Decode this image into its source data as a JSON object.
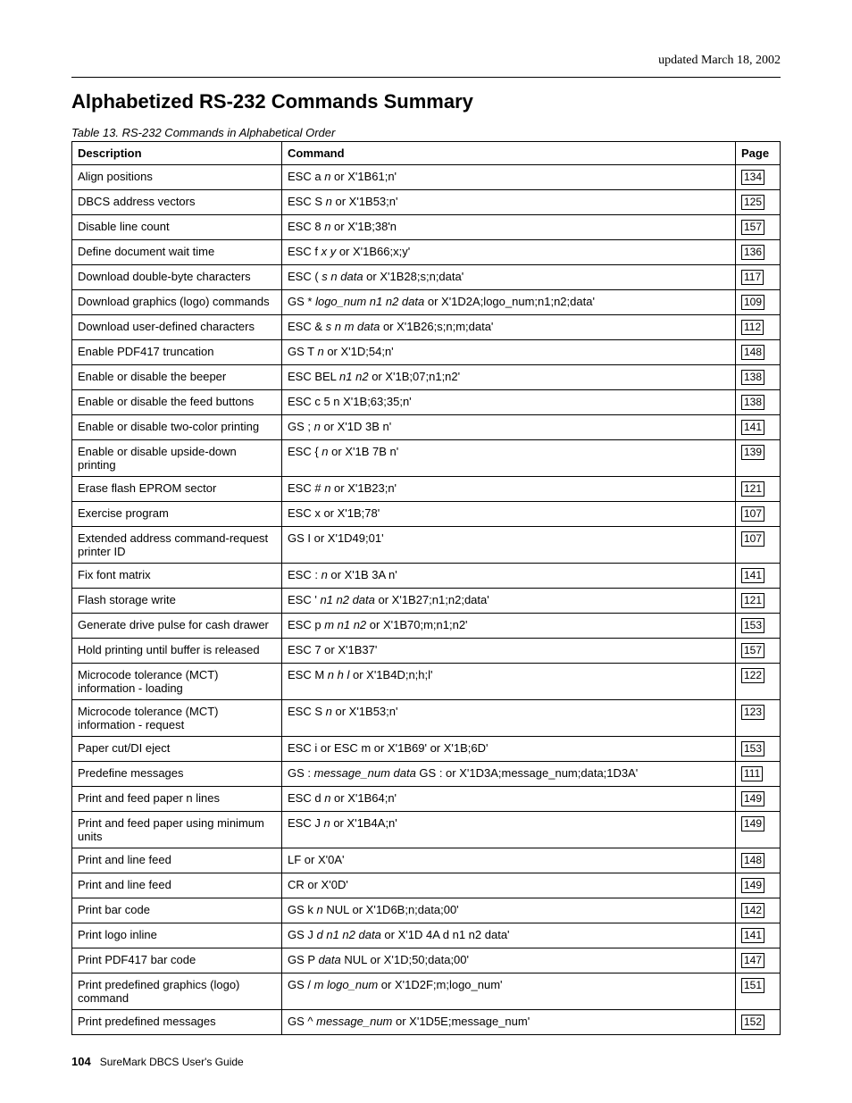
{
  "updated_text": "updated March 18, 2002",
  "heading": "Alphabetized RS-232 Commands Summary",
  "table_caption": "Table 13. RS-232 Commands in Alphabetical Order",
  "columns": {
    "description": "Description",
    "command": "Command",
    "page": "Page"
  },
  "rows": [
    {
      "desc": "Align positions",
      "cmd_pre": "ESC a ",
      "cmd_ital": "n",
      "cmd_post": " or X'1B61;n'",
      "page": "134"
    },
    {
      "desc": "DBCS address vectors",
      "cmd_pre": "ESC S ",
      "cmd_ital": "n",
      "cmd_post": " or X'1B53;n'",
      "page": "125"
    },
    {
      "desc": "Disable line count",
      "cmd_pre": "ESC 8 ",
      "cmd_ital": "n",
      "cmd_post": " or X'1B;38'n",
      "page": "157"
    },
    {
      "desc": "Define document wait time",
      "cmd_pre": "ESC f ",
      "cmd_ital": "x y",
      "cmd_post": " or X'1B66;x;y'",
      "page": "136"
    },
    {
      "desc": "Download double-byte characters",
      "cmd_pre": "ESC ( ",
      "cmd_ital": "s n data",
      "cmd_post": " or X'1B28;s;n;data'",
      "page": "117"
    },
    {
      "desc": "Download graphics (logo) commands",
      "cmd_pre": "GS * ",
      "cmd_ital": "logo_num n1 n2 data",
      "cmd_post": " or X'1D2A;logo_num;n1;n2;data'",
      "page": "109"
    },
    {
      "desc": "Download user-defined characters",
      "cmd_pre": "ESC & ",
      "cmd_ital": "s n m data",
      "cmd_post": " or X'1B26;s;n;m;data'",
      "page": "112"
    },
    {
      "desc": "Enable PDF417 truncation",
      "cmd_pre": "GS T ",
      "cmd_ital": "n",
      "cmd_post": " or X'1D;54;n'",
      "page": "148"
    },
    {
      "desc": "Enable or disable the beeper",
      "cmd_pre": "ESC BEL ",
      "cmd_ital": "n1 n2",
      "cmd_post": " or X'1B;07;n1;n2'",
      "page": "138"
    },
    {
      "desc": "Enable or disable the feed buttons",
      "cmd_pre": "ESC c 5 n X'1B;63;35;n'",
      "cmd_ital": "",
      "cmd_post": "",
      "page": "138"
    },
    {
      "desc": "Enable or disable two-color printing",
      "cmd_pre": "GS ; ",
      "cmd_ital": "n",
      "cmd_post": " or X'1D 3B n'",
      "page": "141"
    },
    {
      "desc": "Enable or disable upside-down printing",
      "cmd_pre": "ESC { ",
      "cmd_ital": "n",
      "cmd_post": " or X'1B 7B n'",
      "page": "139"
    },
    {
      "desc": "Erase flash EPROM sector",
      "cmd_pre": "ESC # ",
      "cmd_ital": "n",
      "cmd_post": " or X'1B23;n'",
      "page": "121"
    },
    {
      "desc": "Exercise program",
      "cmd_pre": "ESC x or X'1B;78'",
      "cmd_ital": "",
      "cmd_post": "",
      "page": "107"
    },
    {
      "desc": "Extended address command-request printer ID",
      "cmd_pre": "GS I or X'1D49;01'",
      "cmd_ital": "",
      "cmd_post": "",
      "page": "107"
    },
    {
      "desc": "Fix font matrix",
      "cmd_pre": "ESC : ",
      "cmd_ital": "n",
      "cmd_post": " or X'1B 3A n'",
      "page": "141"
    },
    {
      "desc": "Flash storage write",
      "cmd_pre": "ESC ' ",
      "cmd_ital": "n1 n2 data",
      "cmd_post": " or X'1B27;n1;n2;data'",
      "page": "121"
    },
    {
      "desc": "Generate drive pulse for cash drawer",
      "cmd_pre": "ESC p ",
      "cmd_ital": "m n1 n2",
      "cmd_post": " or X'1B70;m;n1;n2'",
      "page": "153"
    },
    {
      "desc": "Hold printing until buffer is released",
      "cmd_pre": "ESC 7 or X'1B37'",
      "cmd_ital": "",
      "cmd_post": "",
      "page": "157"
    },
    {
      "desc": "Microcode tolerance (MCT) information - loading",
      "cmd_pre": "ESC M ",
      "cmd_ital": "n h l",
      "cmd_post": " or X'1B4D;n;h;l'",
      "page": "122"
    },
    {
      "desc": "Microcode tolerance (MCT) information - request",
      "cmd_pre": "ESC S ",
      "cmd_ital": "n",
      "cmd_post": " or X'1B53;n'",
      "page": "123"
    },
    {
      "desc": "Paper cut/DI eject",
      "cmd_pre": "ESC i or ESC m or X'1B69' or X'1B;6D'",
      "cmd_ital": "",
      "cmd_post": "",
      "page": "153"
    },
    {
      "desc": "Predefine messages",
      "cmd_pre": "GS : ",
      "cmd_ital": "message_num data",
      "cmd_post": " GS : or X'1D3A;message_num;data;1D3A'",
      "page": "111"
    },
    {
      "desc": "Print and feed paper n lines",
      "cmd_pre": "ESC d ",
      "cmd_ital": "n",
      "cmd_post": " or X'1B64;n'",
      "page": "149"
    },
    {
      "desc": "Print and feed paper using minimum units",
      "cmd_pre": "ESC J ",
      "cmd_ital": "n",
      "cmd_post": " or X'1B4A;n'",
      "page": "149"
    },
    {
      "desc": "Print and line feed",
      "cmd_pre": "LF or X'0A'",
      "cmd_ital": "",
      "cmd_post": "",
      "page": "148"
    },
    {
      "desc": "Print and line feed",
      "cmd_pre": "CR or X'0D'",
      "cmd_ital": "",
      "cmd_post": "",
      "page": "149"
    },
    {
      "desc": "Print bar code",
      "cmd_pre": "GS k ",
      "cmd_ital": "n",
      "cmd_post": " NUL or X'1D6B;n;data;00'",
      "page": "142"
    },
    {
      "desc": "Print logo inline",
      "cmd_pre": "GS J ",
      "cmd_ital": "d n1 n2 data",
      "cmd_post": " or X'1D 4A d n1 n2 data'",
      "page": "141"
    },
    {
      "desc": "Print PDF417 bar code",
      "cmd_pre": "GS P ",
      "cmd_ital": "data",
      "cmd_post": " NUL or X'1D;50;data;00'",
      "page": "147"
    },
    {
      "desc": "Print predefined graphics (logo) command",
      "cmd_pre": "GS / ",
      "cmd_ital": "m logo_num",
      "cmd_post": " or X'1D2F;m;logo_num'",
      "page": "151"
    },
    {
      "desc": "Print predefined messages",
      "cmd_pre": "GS ^ ",
      "cmd_ital": "message_num",
      "cmd_post": " or X'1D5E;message_num'",
      "page": "152"
    }
  ],
  "footer": {
    "page_number": "104",
    "doc_title": "SureMark DBCS User's Guide"
  }
}
